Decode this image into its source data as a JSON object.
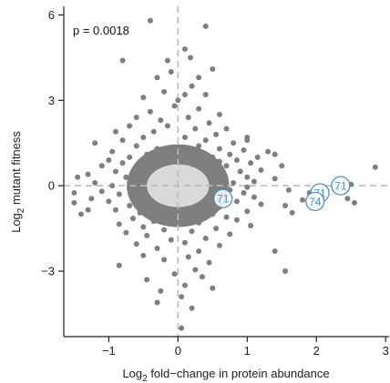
{
  "chart_data": {
    "type": "scatter",
    "xlabel_main": "Log",
    "xlabel_sub": "2",
    "xlabel_rest": " fold−change in protein abundance",
    "ylabel_main": "Log",
    "ylabel_sub": "2",
    "ylabel_rest": " mutant fitness",
    "annotation": "p = 0.0018",
    "xlim": [
      -1.65,
      3.05
    ],
    "ylim": [
      -5.3,
      6.3
    ],
    "xticks": [
      -1,
      0,
      1,
      2,
      3
    ],
    "xtick_labels": [
      "−1",
      "0",
      "1",
      "2",
      "3"
    ],
    "yticks": [
      -3,
      0,
      3,
      6
    ],
    "ytick_labels": [
      "−3",
      "0",
      "3",
      "6"
    ],
    "grid": false,
    "reference_lines": {
      "x": 0,
      "y": 0,
      "style": "dashed"
    },
    "colors": {
      "points": "#7f7f7f",
      "dense_core": "#d9d9d9",
      "highlight": "#4a90c8",
      "refline": "#bbbbbb",
      "axis": "#222222"
    },
    "dense_core": {
      "x_range": [
        -0.45,
        0.45
      ],
      "y_range": [
        -0.75,
        0.75
      ],
      "note_count_approx": "hundreds"
    },
    "points": [
      [
        -0.4,
        5.8
      ],
      [
        0.4,
        5.6
      ],
      [
        0.1,
        4.8
      ],
      [
        0.18,
        4.5
      ],
      [
        -0.15,
        4.4
      ],
      [
        -0.8,
        4.4
      ],
      [
        0.5,
        4.1
      ],
      [
        -0.1,
        4.0
      ],
      [
        0.3,
        3.8
      ],
      [
        -0.3,
        3.8
      ],
      [
        0.2,
        3.5
      ],
      [
        -0.2,
        3.3
      ],
      [
        0.1,
        3.2
      ],
      [
        0.4,
        3.2
      ],
      [
        -0.5,
        3.1
      ],
      [
        0.0,
        3.0
      ],
      [
        -0.05,
        2.8
      ],
      [
        0.3,
        2.7
      ],
      [
        -0.4,
        2.6
      ],
      [
        0.6,
        2.5
      ],
      [
        -0.6,
        2.4
      ],
      [
        0.15,
        2.4
      ],
      [
        -0.25,
        2.3
      ],
      [
        0.45,
        2.2
      ],
      [
        -0.7,
        2.1
      ],
      [
        -0.15,
        2.1
      ],
      [
        0.7,
        2.0
      ],
      [
        0.25,
        2.0
      ],
      [
        -0.9,
        1.9
      ],
      [
        -0.35,
        1.9
      ],
      [
        0.55,
        1.8
      ],
      [
        1.0,
        1.7
      ],
      [
        -0.5,
        1.7
      ],
      [
        0.1,
        1.7
      ],
      [
        1.0,
        1.6
      ],
      [
        -0.8,
        1.6
      ],
      [
        0.4,
        1.6
      ],
      [
        -1.2,
        1.5
      ],
      [
        0.8,
        1.5
      ],
      [
        -0.6,
        1.4
      ],
      [
        0.3,
        1.4
      ],
      [
        -0.3,
        1.3
      ],
      [
        0.6,
        1.3
      ],
      [
        0.95,
        1.25
      ],
      [
        -0.95,
        1.2
      ],
      [
        0.15,
        1.2
      ],
      [
        1.3,
        1.2
      ],
      [
        -0.45,
        1.1
      ],
      [
        0.75,
        1.1
      ],
      [
        1.4,
        1.1
      ],
      [
        -0.7,
        1.0
      ],
      [
        0.5,
        1.0
      ],
      [
        1.15,
        1.0
      ],
      [
        -0.2,
        1.0
      ],
      [
        -1.0,
        0.9
      ],
      [
        0.85,
        0.9
      ],
      [
        -0.55,
        0.85
      ],
      [
        0.6,
        0.85
      ],
      [
        1.05,
        0.8
      ],
      [
        -0.8,
        0.8
      ],
      [
        1.5,
        0.7
      ],
      [
        -1.1,
        0.7
      ],
      [
        0.7,
        0.7
      ],
      [
        -0.6,
        0.6
      ],
      [
        1.2,
        0.55
      ],
      [
        -0.9,
        0.5
      ],
      [
        0.9,
        0.5
      ],
      [
        -1.3,
        0.4
      ],
      [
        -1.45,
        0.3
      ],
      [
        1.0,
        0.3
      ],
      [
        -0.75,
        0.3
      ],
      [
        0.65,
        0.25
      ],
      [
        1.1,
        0.15
      ],
      [
        -1.2,
        0.1
      ],
      [
        0.8,
        0.1
      ],
      [
        -0.95,
        0.0
      ],
      [
        1.0,
        -0.05
      ],
      [
        -0.7,
        -0.1
      ],
      [
        0.75,
        -0.15
      ],
      [
        -1.1,
        -0.2
      ],
      [
        -1.5,
        -0.25
      ],
      [
        0.95,
        -0.25
      ],
      [
        -0.85,
        -0.3
      ],
      [
        0.6,
        -0.35
      ],
      [
        -1.25,
        -0.45
      ],
      [
        1.1,
        -0.4
      ],
      [
        -1.5,
        -0.6
      ],
      [
        -1.0,
        -0.55
      ],
      [
        0.85,
        -0.55
      ],
      [
        1.2,
        -0.65
      ],
      [
        -0.7,
        -0.7
      ],
      [
        0.6,
        -0.75
      ],
      [
        -1.3,
        -0.85
      ],
      [
        -0.9,
        -0.85
      ],
      [
        1.0,
        -0.9
      ],
      [
        -0.55,
        -0.95
      ],
      [
        0.5,
        -1.0
      ],
      [
        -1.4,
        -1.0
      ],
      [
        0.7,
        -1.1
      ],
      [
        -0.65,
        -1.15
      ],
      [
        0.85,
        -1.2
      ],
      [
        -0.35,
        -1.25
      ],
      [
        0.3,
        -1.3
      ],
      [
        -0.85,
        -1.35
      ],
      [
        1.05,
        -1.4
      ],
      [
        -0.5,
        -1.45
      ],
      [
        0.55,
        -1.5
      ],
      [
        -0.2,
        -1.55
      ],
      [
        0.2,
        -1.6
      ],
      [
        -0.75,
        -1.65
      ],
      [
        0.75,
        -1.7
      ],
      [
        -0.45,
        -1.75
      ],
      [
        0.4,
        -1.85
      ],
      [
        -0.1,
        -1.9
      ],
      [
        0.1,
        -2.0
      ],
      [
        -0.6,
        -2.05
      ],
      [
        0.6,
        -2.1
      ],
      [
        -0.3,
        -2.2
      ],
      [
        0.3,
        -2.3
      ],
      [
        -0.5,
        -2.45
      ],
      [
        0.15,
        -2.5
      ],
      [
        -0.2,
        -2.6
      ],
      [
        0.45,
        -2.7
      ],
      [
        -0.85,
        -2.8
      ],
      [
        0.25,
        -2.95
      ],
      [
        -0.05,
        -3.1
      ],
      [
        0.35,
        -3.2
      ],
      [
        -0.45,
        -3.3
      ],
      [
        0.1,
        -3.5
      ],
      [
        0.5,
        -3.6
      ],
      [
        -0.25,
        -3.7
      ],
      [
        0.05,
        -3.9
      ],
      [
        -0.3,
        -4.1
      ],
      [
        0.2,
        -4.3
      ],
      [
        0.05,
        -5.0
      ],
      [
        1.4,
        0.25
      ],
      [
        1.6,
        -0.15
      ],
      [
        1.55,
        -0.7
      ],
      [
        1.8,
        -0.5
      ],
      [
        1.65,
        -0.95
      ],
      [
        1.4,
        -2.3
      ],
      [
        1.55,
        -3.0
      ],
      [
        2.3,
        -0.1
      ],
      [
        2.45,
        -0.45
      ],
      [
        2.5,
        0.05
      ],
      [
        2.85,
        0.65
      ],
      [
        2.55,
        -0.6
      ],
      [
        2.0,
        -0.5
      ],
      [
        1.9,
        -0.25
      ]
    ],
    "highlighted": [
      {
        "label": "71",
        "x": 0.65,
        "y": -0.45
      },
      {
        "label": "71",
        "x": 2.05,
        "y": -0.25
      },
      {
        "label": "71",
        "x": 2.35,
        "y": 0.0
      },
      {
        "label": "74",
        "x": 1.98,
        "y": -0.55
      }
    ]
  }
}
